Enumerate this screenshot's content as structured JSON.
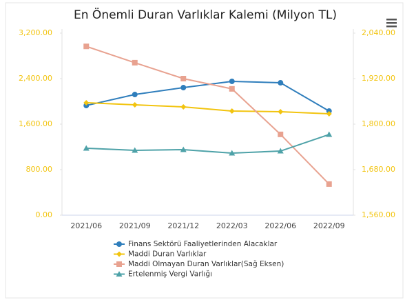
{
  "chart_data": {
    "type": "line",
    "title": "En Önemli Duran Varlıklar Kalemi (Milyon TL)",
    "categories": [
      "2021/06",
      "2021/09",
      "2021/12",
      "2022/03",
      "2022/06",
      "2022/09"
    ],
    "series": [
      {
        "name": "Finans Sektörü Faaliyetlerinden Alacaklar",
        "color": "#2f7ebc",
        "values": [
          1927,
          2121,
          2242,
          2352,
          2327,
          1830
        ]
      },
      {
        "name": "Maddi Duran Varlıklar",
        "color": "#f2c40f",
        "values": [
          1976,
          1939,
          1903,
          1830,
          1818,
          1782
        ]
      },
      {
        "name": "Maddi Olmayan Duran Varlıklar(Sağ Eksen)",
        "color": "#e8a290",
        "axis": "y2",
        "values": [
          2005,
          1962,
          1920,
          1893,
          1773,
          1642
        ]
      },
      {
        "name": "Ertelenmiş Vergi Varlığı",
        "color": "#4ea2a8",
        "values": [
          1176,
          1139,
          1152,
          1091,
          1127,
          1418
        ]
      }
    ],
    "ylim": [
      0,
      3200
    ],
    "yticks": [
      {
        "value": 0,
        "label": "0.00"
      },
      {
        "value": 800,
        "label": "800.00"
      },
      {
        "value": 1600,
        "label": "1,600.00"
      },
      {
        "value": 2400,
        "label": "2,400.00"
      },
      {
        "value": 3200,
        "label": "3,200.00"
      }
    ],
    "y2lim": [
      1560,
      2040
    ],
    "y2ticks": [
      {
        "value": 1560,
        "label": "1,560.00"
      },
      {
        "value": 1680,
        "label": "1,680.00"
      },
      {
        "value": 1800,
        "label": "1,800.00"
      },
      {
        "value": 1920,
        "label": "1,920.00"
      },
      {
        "value": 2040,
        "label": "2,040.00"
      }
    ],
    "tick_color": "#f2c40f",
    "grid": false
  }
}
